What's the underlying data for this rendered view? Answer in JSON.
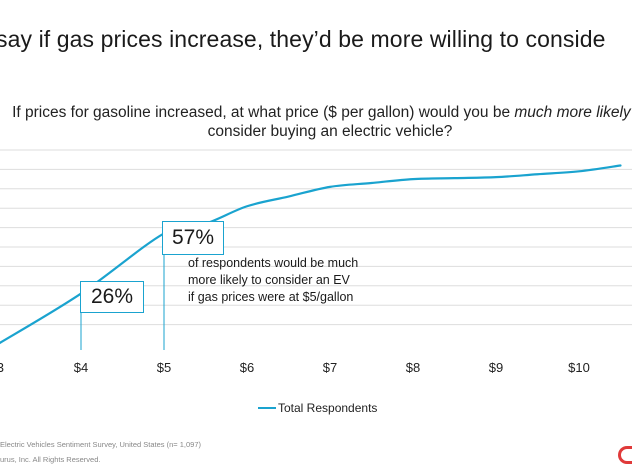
{
  "headline": "say if gas prices increase, they’d be more willing to conside",
  "question": {
    "line1_before": "If prices for gasoline increased, at what price ($ per gallon) would you be ",
    "line1_emphasis": "much more likely",
    "line1_after": " to",
    "line2": "consider buying an electric vehicle?"
  },
  "callouts": {
    "first_value": "26%",
    "second_value": "57%",
    "note_lines": [
      "of respondents would be much",
      "more likely to consider an EV",
      "if gas prices were at $5/gallon"
    ]
  },
  "legend": {
    "label": "Total Respondents"
  },
  "footer": {
    "source": "Electric Vehicles Sentiment Survey, United States (n= 1,097)",
    "copyright": "urus, Inc.  All Rights Reserved."
  },
  "colors": {
    "line": "#1aa3cf",
    "gridline": "#dddddd",
    "logo": "#e03a3a"
  },
  "chart_data": {
    "type": "line",
    "x_tick_labels": [
      "3",
      "$4",
      "$5",
      "$6",
      "$7",
      "$8",
      "$9",
      "$10"
    ],
    "x": [
      3,
      4,
      5,
      5.5,
      6,
      6.5,
      7,
      7.5,
      8,
      8.5,
      9,
      9.5,
      10,
      10.5
    ],
    "series": [
      {
        "name": "Total Respondents",
        "values": [
          0,
          26,
          57,
          62,
          71,
          76,
          81,
          83,
          85,
          85.5,
          86,
          87.5,
          89,
          92
        ]
      }
    ],
    "highlighted_x": [
      4,
      5
    ],
    "grid": true,
    "legend_position": "bottom"
  }
}
